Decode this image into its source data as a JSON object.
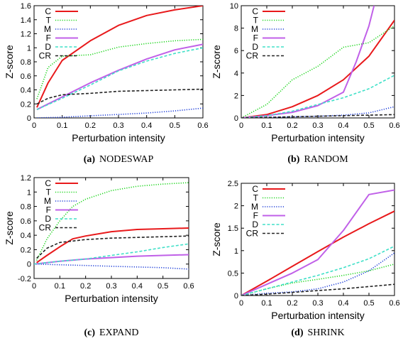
{
  "chart_data": [
    {
      "type": "line",
      "caption_letter": "(a)",
      "caption_name": "NODESWAP",
      "xlabel": "Perturbation intensity",
      "ylabel": "Z-score",
      "xlim": [
        0,
        0.6
      ],
      "ylim": [
        0,
        1.6
      ],
      "xticks": [
        0,
        0.1,
        0.2,
        0.3,
        0.4,
        0.5,
        0.6
      ],
      "xtick_labels": [
        "0",
        "0.1",
        "0.2",
        "0.3",
        "0.4",
        "0.5",
        "0.6"
      ],
      "yticks": [
        0,
        0.2,
        0.4,
        0.6,
        0.8,
        1,
        1.2,
        1.4,
        1.6
      ],
      "ytick_labels": [
        "0",
        "0.2",
        "0.4",
        "0.6",
        "0.8",
        "1",
        "1.2",
        "1.4",
        "1.6"
      ],
      "legend_position": "top-left",
      "grid": false,
      "series": [
        {
          "name": "C",
          "color": "#e8191b",
          "dash": "solid",
          "x": [
            0.01,
            0.05,
            0.1,
            0.2,
            0.3,
            0.4,
            0.5,
            0.6
          ],
          "y": [
            0.15,
            0.5,
            0.82,
            1.1,
            1.32,
            1.46,
            1.54,
            1.6
          ]
        },
        {
          "name": "T",
          "color": "#1ed51e",
          "dash": "dotted",
          "x": [
            0.01,
            0.05,
            0.1,
            0.2,
            0.3,
            0.4,
            0.5,
            0.6
          ],
          "y": [
            0.27,
            0.72,
            0.88,
            0.9,
            1.01,
            1.06,
            1.1,
            1.12
          ]
        },
        {
          "name": "M",
          "color": "#1f3fd8",
          "dash": "dotted",
          "x": [
            0.01,
            0.1,
            0.2,
            0.3,
            0.4,
            0.5,
            0.6
          ],
          "y": [
            0.0,
            0.01,
            0.03,
            0.05,
            0.07,
            0.1,
            0.14
          ]
        },
        {
          "name": "F",
          "color": "#c060e8",
          "dash": "solid",
          "x": [
            0.01,
            0.05,
            0.1,
            0.2,
            0.3,
            0.4,
            0.5,
            0.6
          ],
          "y": [
            0.12,
            0.2,
            0.3,
            0.5,
            0.68,
            0.84,
            0.97,
            1.05
          ]
        },
        {
          "name": "D",
          "color": "#40e0c8",
          "dash": "dashed",
          "x": [
            0.01,
            0.05,
            0.1,
            0.2,
            0.3,
            0.4,
            0.5,
            0.6
          ],
          "y": [
            0.12,
            0.19,
            0.28,
            0.47,
            0.67,
            0.81,
            0.92,
            1.0
          ]
        },
        {
          "name": "CR",
          "color": "#222222",
          "dash": "dashed",
          "x": [
            0.01,
            0.05,
            0.1,
            0.2,
            0.3,
            0.4,
            0.5,
            0.6
          ],
          "y": [
            0.2,
            0.28,
            0.33,
            0.35,
            0.38,
            0.39,
            0.4,
            0.41
          ]
        }
      ]
    },
    {
      "type": "line",
      "caption_letter": "(b)",
      "caption_name": "RANDOM",
      "xlabel": "Perturbation intensity",
      "ylabel": "Z-score",
      "xlim": [
        0,
        0.6
      ],
      "ylim": [
        0,
        10
      ],
      "xticks": [
        0,
        0.1,
        0.2,
        0.3,
        0.4,
        0.5,
        0.6
      ],
      "xtick_labels": [
        "0",
        "0.1",
        "0.2",
        "0.3",
        "0.4",
        "0.5",
        "0.6"
      ],
      "yticks": [
        0,
        2,
        4,
        6,
        8,
        10
      ],
      "ytick_labels": [
        "0",
        "2",
        "4",
        "6",
        "8",
        "10"
      ],
      "legend_position": "top-left",
      "grid": false,
      "series": [
        {
          "name": "C",
          "color": "#e8191b",
          "dash": "solid",
          "x": [
            0.0,
            0.1,
            0.2,
            0.3,
            0.4,
            0.5,
            0.6
          ],
          "y": [
            0.0,
            0.3,
            1.0,
            2.0,
            3.4,
            5.5,
            8.7
          ]
        },
        {
          "name": "T",
          "color": "#1ed51e",
          "dash": "dotted",
          "x": [
            0.0,
            0.1,
            0.2,
            0.3,
            0.4,
            0.5,
            0.6
          ],
          "y": [
            0.0,
            1.2,
            3.4,
            4.6,
            6.3,
            6.7,
            8.2
          ]
        },
        {
          "name": "M",
          "color": "#1f3fd8",
          "dash": "dotted",
          "x": [
            0.0,
            0.1,
            0.2,
            0.3,
            0.4,
            0.5,
            0.6
          ],
          "y": [
            0.0,
            0.05,
            0.1,
            0.15,
            0.25,
            0.45,
            1.0
          ]
        },
        {
          "name": "F",
          "color": "#c060e8",
          "dash": "solid",
          "x": [
            0.0,
            0.1,
            0.2,
            0.3,
            0.4,
            0.45,
            0.5,
            0.52
          ],
          "y": [
            0.0,
            0.2,
            0.5,
            1.1,
            2.3,
            5.0,
            8.2,
            10.0
          ]
        },
        {
          "name": "D",
          "color": "#40e0c8",
          "dash": "dashed",
          "x": [
            0.0,
            0.1,
            0.2,
            0.3,
            0.4,
            0.5,
            0.6
          ],
          "y": [
            0.0,
            0.2,
            0.6,
            1.2,
            1.8,
            2.6,
            3.8
          ]
        },
        {
          "name": "CR",
          "color": "#222222",
          "dash": "dashed",
          "x": [
            0.0,
            0.1,
            0.2,
            0.3,
            0.4,
            0.5,
            0.6
          ],
          "y": [
            0.0,
            0.05,
            0.1,
            0.15,
            0.2,
            0.25,
            0.3
          ]
        }
      ]
    },
    {
      "type": "line",
      "caption_letter": "(c)",
      "caption_name": "EXPAND",
      "xlabel": "Perturbation intensity",
      "ylabel": "Z-score",
      "xlim": [
        0,
        0.6
      ],
      "ylim": [
        -0.2,
        1.2
      ],
      "xticks": [
        0,
        0.1,
        0.2,
        0.3,
        0.4,
        0.5,
        0.6
      ],
      "xtick_labels": [
        "0",
        "0.1",
        "0.2",
        "0.3",
        "0.4",
        "0.5",
        "0.6"
      ],
      "yticks": [
        -0.2,
        0,
        0.2,
        0.4,
        0.6,
        0.8,
        1,
        1.2
      ],
      "ytick_labels": [
        "-0.2",
        "0",
        "0.2",
        "0.4",
        "0.6",
        "0.8",
        "1",
        "1.2"
      ],
      "legend_position": "top-left",
      "grid": false,
      "series": [
        {
          "name": "C",
          "color": "#e8191b",
          "dash": "solid",
          "x": [
            0.01,
            0.05,
            0.1,
            0.15,
            0.2,
            0.3,
            0.4,
            0.5,
            0.6
          ],
          "y": [
            0.02,
            0.12,
            0.24,
            0.35,
            0.39,
            0.45,
            0.48,
            0.49,
            0.5
          ]
        },
        {
          "name": "T",
          "color": "#1ed51e",
          "dash": "dotted",
          "x": [
            0.01,
            0.05,
            0.1,
            0.15,
            0.2,
            0.3,
            0.4,
            0.5,
            0.6
          ],
          "y": [
            0.05,
            0.35,
            0.6,
            0.8,
            0.9,
            1.02,
            1.08,
            1.11,
            1.13
          ]
        },
        {
          "name": "M",
          "color": "#1f3fd8",
          "dash": "dotted",
          "x": [
            0.0,
            0.1,
            0.2,
            0.3,
            0.4,
            0.5,
            0.6
          ],
          "y": [
            0.0,
            -0.01,
            -0.02,
            -0.03,
            -0.04,
            -0.05,
            -0.07
          ]
        },
        {
          "name": "F",
          "color": "#c060e8",
          "dash": "solid",
          "x": [
            0.0,
            0.1,
            0.2,
            0.3,
            0.4,
            0.5,
            0.6
          ],
          "y": [
            0.0,
            0.04,
            0.07,
            0.09,
            0.11,
            0.12,
            0.13
          ]
        },
        {
          "name": "D",
          "color": "#40e0c8",
          "dash": "dashed",
          "x": [
            0.0,
            0.1,
            0.2,
            0.3,
            0.4,
            0.5,
            0.6
          ],
          "y": [
            0.0,
            0.04,
            0.07,
            0.12,
            0.17,
            0.23,
            0.28
          ]
        },
        {
          "name": "CR",
          "color": "#222222",
          "dash": "dashed",
          "x": [
            0.01,
            0.05,
            0.1,
            0.15,
            0.2,
            0.3,
            0.4,
            0.5,
            0.6
          ],
          "y": [
            0.08,
            0.22,
            0.3,
            0.32,
            0.34,
            0.36,
            0.37,
            0.38,
            0.39
          ]
        }
      ]
    },
    {
      "type": "line",
      "caption_letter": "(d)",
      "caption_name": "SHRINK",
      "xlabel": "Perturbation intensity",
      "ylabel": "Z-score",
      "xlim": [
        0,
        0.6
      ],
      "ylim": [
        0,
        2.5
      ],
      "xticks": [
        0,
        0.1,
        0.2,
        0.3,
        0.4,
        0.5,
        0.6
      ],
      "xtick_labels": [
        "0",
        "0.1",
        "0.2",
        "0.3",
        "0.4",
        "0.5",
        "0.6"
      ],
      "yticks": [
        0,
        0.5,
        1,
        1.5,
        2,
        2.5
      ],
      "ytick_labels": [
        "0",
        "0.5",
        "1",
        "1.5",
        "2",
        "2.5"
      ],
      "legend_position": "top-left",
      "grid": false,
      "series": [
        {
          "name": "C",
          "color": "#e8191b",
          "dash": "solid",
          "x": [
            0.0,
            0.1,
            0.2,
            0.3,
            0.4,
            0.5,
            0.6
          ],
          "y": [
            0.0,
            0.32,
            0.65,
            0.98,
            1.3,
            1.6,
            1.88
          ]
        },
        {
          "name": "T",
          "color": "#1ed51e",
          "dash": "dotted",
          "x": [
            0.0,
            0.1,
            0.2,
            0.3,
            0.4,
            0.5,
            0.6
          ],
          "y": [
            0.0,
            0.15,
            0.28,
            0.36,
            0.45,
            0.55,
            0.7
          ]
        },
        {
          "name": "M",
          "color": "#1f3fd8",
          "dash": "dotted",
          "x": [
            0.0,
            0.1,
            0.2,
            0.3,
            0.4,
            0.5,
            0.6
          ],
          "y": [
            0.0,
            0.05,
            0.08,
            0.15,
            0.3,
            0.55,
            0.95
          ]
        },
        {
          "name": "F",
          "color": "#c060e8",
          "dash": "solid",
          "x": [
            0.0,
            0.1,
            0.2,
            0.3,
            0.4,
            0.5,
            0.6
          ],
          "y": [
            0.0,
            0.25,
            0.5,
            0.8,
            1.45,
            2.25,
            2.35
          ]
        },
        {
          "name": "D",
          "color": "#40e0c8",
          "dash": "dashed",
          "x": [
            0.0,
            0.1,
            0.2,
            0.3,
            0.4,
            0.5,
            0.6
          ],
          "y": [
            0.0,
            0.15,
            0.3,
            0.45,
            0.62,
            0.82,
            1.1
          ]
        },
        {
          "name": "CR",
          "color": "#222222",
          "dash": "dashed",
          "x": [
            0.0,
            0.1,
            0.2,
            0.3,
            0.4,
            0.5,
            0.6
          ],
          "y": [
            0.0,
            0.03,
            0.07,
            0.11,
            0.15,
            0.2,
            0.25
          ]
        }
      ]
    }
  ]
}
